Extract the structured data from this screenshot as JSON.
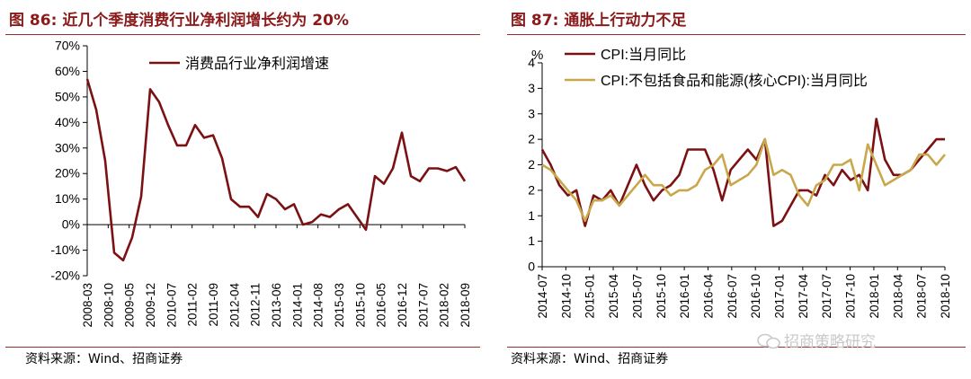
{
  "colors": {
    "title": "#8B1A1A",
    "line_dark": "#7B1113",
    "line_gold": "#C9A84C",
    "grid": "#bfbfbf"
  },
  "left": {
    "title_num": "图 86:",
    "title_text": "近几个季度消费行业净利润增长约为 20%",
    "source": "资料来源：Wind、招商证券",
    "chart_data": {
      "type": "line",
      "title": "近几个季度消费行业净利润增长约为 20%",
      "ylim": [
        -20,
        70
      ],
      "yticks": [
        "-20%",
        "-10%",
        "0%",
        "10%",
        "20%",
        "30%",
        "40%",
        "50%",
        "60%",
        "70%"
      ],
      "ytick_values": [
        -20,
        -10,
        0,
        10,
        20,
        30,
        40,
        50,
        60,
        70
      ],
      "xtick_labels": [
        "2008-03",
        "2008-10",
        "2009-05",
        "2009-12",
        "2010-07",
        "2011-02",
        "2011-09",
        "2012-04",
        "2012-11",
        "2013-06",
        "2014-01",
        "2014-08",
        "2015-03",
        "2015-10",
        "2016-05",
        "2016-12",
        "2017-07",
        "2018-02",
        "2018-09"
      ],
      "legend_position": "top-center",
      "series": [
        {
          "name": "消费品行业净利润增速",
          "color": "#7B1113",
          "values": [
            57,
            45,
            25,
            -11,
            -14,
            -5,
            11,
            53,
            48,
            39,
            31,
            31,
            39,
            34,
            35,
            26,
            10,
            7,
            7,
            3,
            12,
            10,
            6,
            8,
            0,
            1,
            4,
            3,
            6,
            8,
            3,
            -2,
            19,
            16,
            22,
            36,
            19,
            17,
            22,
            22,
            21,
            22.5,
            17
          ]
        }
      ]
    }
  },
  "right": {
    "title_num": "图 87:",
    "title_text": "通胀上行动力不足",
    "source": "资料来源：Wind、招商证券",
    "chart_data": {
      "type": "line",
      "title": "通胀上行动力不足",
      "ylabel": "%",
      "ylim": [
        0,
        4
      ],
      "yticks": [
        "0",
        "1",
        "1",
        "2",
        "2",
        "2",
        "3",
        "3",
        "4"
      ],
      "ytick_values": [
        0,
        0.5,
        1,
        1.5,
        2,
        2.5,
        3,
        3.5,
        4
      ],
      "xtick_labels": [
        "2014-07",
        "2014-10",
        "2015-01",
        "2015-04",
        "2015-07",
        "2015-10",
        "2016-01",
        "2016-04",
        "2016-07",
        "2016-10",
        "2017-01",
        "2017-04",
        "2017-07",
        "2017-10",
        "2018-01",
        "2018-04",
        "2018-07",
        "2018-10"
      ],
      "legend_position": "top-left",
      "series": [
        {
          "name": "CPI:当月同比",
          "color": "#7B1113",
          "values": [
            2.3,
            2.0,
            1.6,
            1.4,
            1.5,
            0.8,
            1.4,
            1.3,
            1.5,
            1.2,
            1.6,
            2.0,
            1.6,
            1.3,
            1.5,
            1.6,
            1.8,
            2.3,
            2.3,
            2.3,
            1.9,
            1.3,
            1.9,
            2.1,
            2.3,
            2.1,
            2.5,
            0.8,
            0.9,
            1.2,
            1.5,
            1.5,
            1.4,
            1.8,
            1.6,
            1.9,
            1.7,
            1.8,
            1.5,
            2.9,
            2.1,
            1.8,
            1.8,
            1.9,
            2.1,
            2.3,
            2.5,
            2.5
          ]
        },
        {
          "name": "CPI:不包括食品和能源(核心CPI):当月同比",
          "color": "#C9A84C",
          "values": [
            2.0,
            1.9,
            1.7,
            1.5,
            1.3,
            0.9,
            1.3,
            1.3,
            1.4,
            1.2,
            1.4,
            1.6,
            1.8,
            1.6,
            1.6,
            1.4,
            1.5,
            1.5,
            1.6,
            1.9,
            2.0,
            2.2,
            1.6,
            1.7,
            1.8,
            2.0,
            2.5,
            1.8,
            1.9,
            1.8,
            1.4,
            1.2,
            1.6,
            1.7,
            2.0,
            2.0,
            2.1,
            1.5,
            2.4,
            2.0,
            1.6,
            1.7,
            1.8,
            1.9,
            2.2,
            2.2,
            2.0,
            2.2
          ]
        }
      ]
    }
  },
  "watermark": {
    "text": "招商策略研究"
  }
}
